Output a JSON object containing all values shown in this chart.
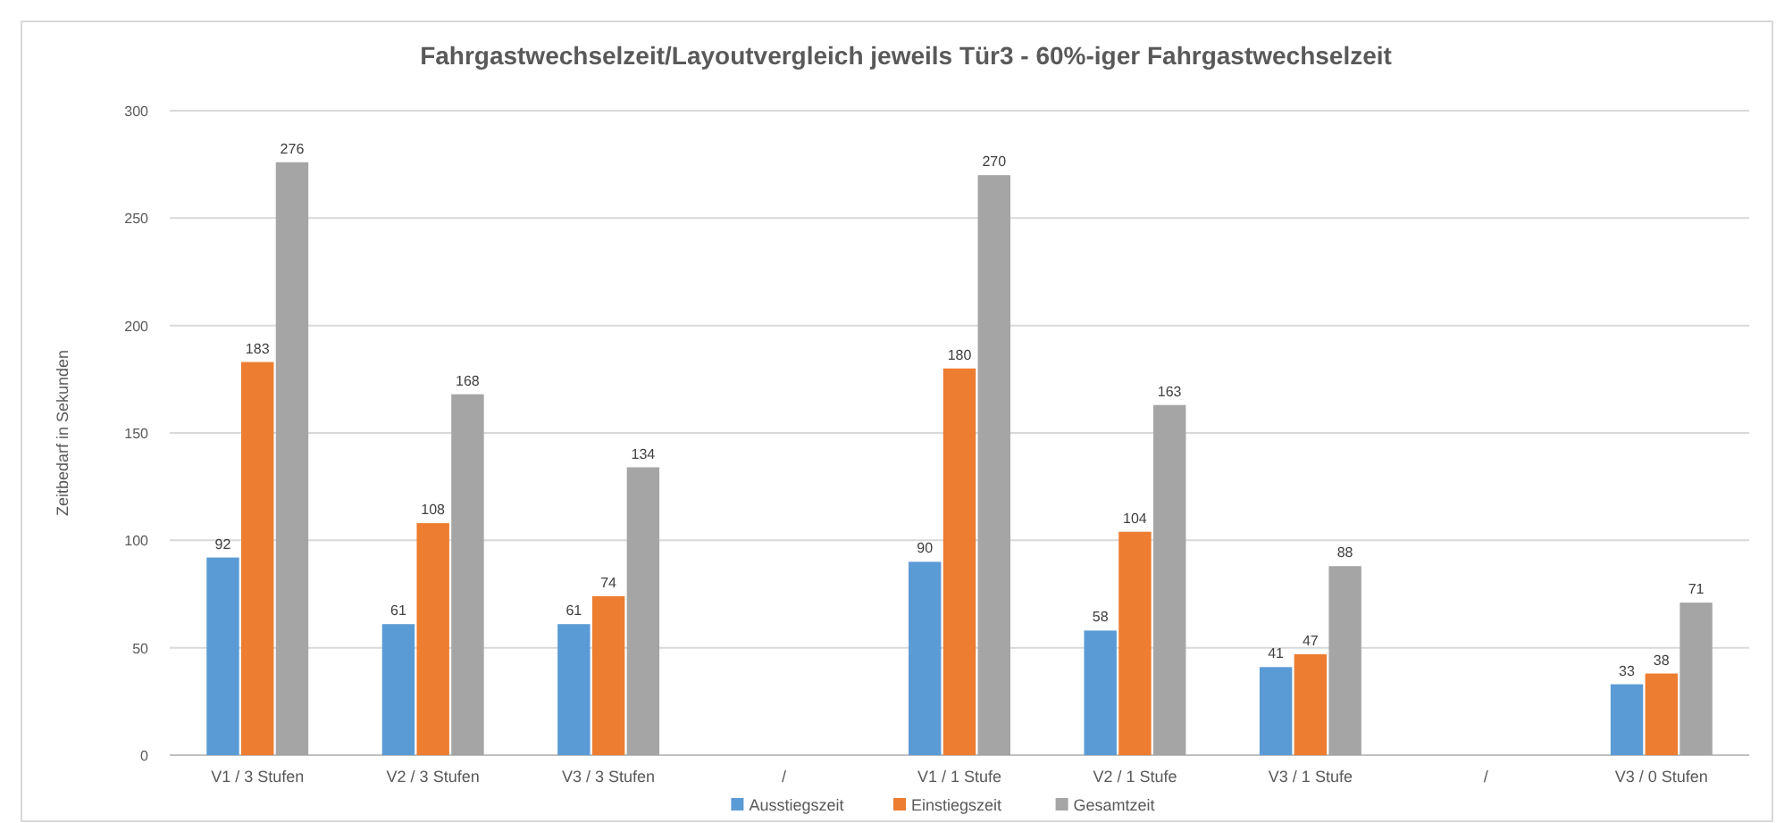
{
  "chart_data": {
    "type": "bar",
    "title": "Fahrgastwechselzeit/Layoutvergleich jeweils Tür3 - 60%-iger Fahrgastwechselzeit",
    "ylabel": "Zeitbedarf in Sekunden",
    "categories": [
      "V1 / 3 Stufen",
      "V2 / 3 Stufen",
      "V3 / 3 Stufen",
      "/",
      "V1 / 1 Stufe",
      "V2 / 1 Stufe",
      "V3 / 1 Stufe",
      "/",
      "V3 / 0 Stufen"
    ],
    "series": [
      {
        "name": "Ausstiegszeit",
        "color": "#5b9bd5",
        "values": [
          92,
          61,
          61,
          null,
          90,
          58,
          41,
          null,
          33
        ]
      },
      {
        "name": "Einstiegszeit",
        "color": "#ed7d31",
        "values": [
          183,
          108,
          74,
          null,
          180,
          104,
          47,
          null,
          38
        ]
      },
      {
        "name": "Gesamtzeit",
        "color": "#a5a5a5",
        "values": [
          276,
          168,
          134,
          null,
          270,
          163,
          88,
          null,
          71
        ]
      }
    ],
    "ylim": [
      0,
      300
    ],
    "yticks": [
      0,
      50,
      100,
      150,
      200,
      250,
      300
    ],
    "grid": "y",
    "legend": "bottom",
    "data_labels": true
  }
}
